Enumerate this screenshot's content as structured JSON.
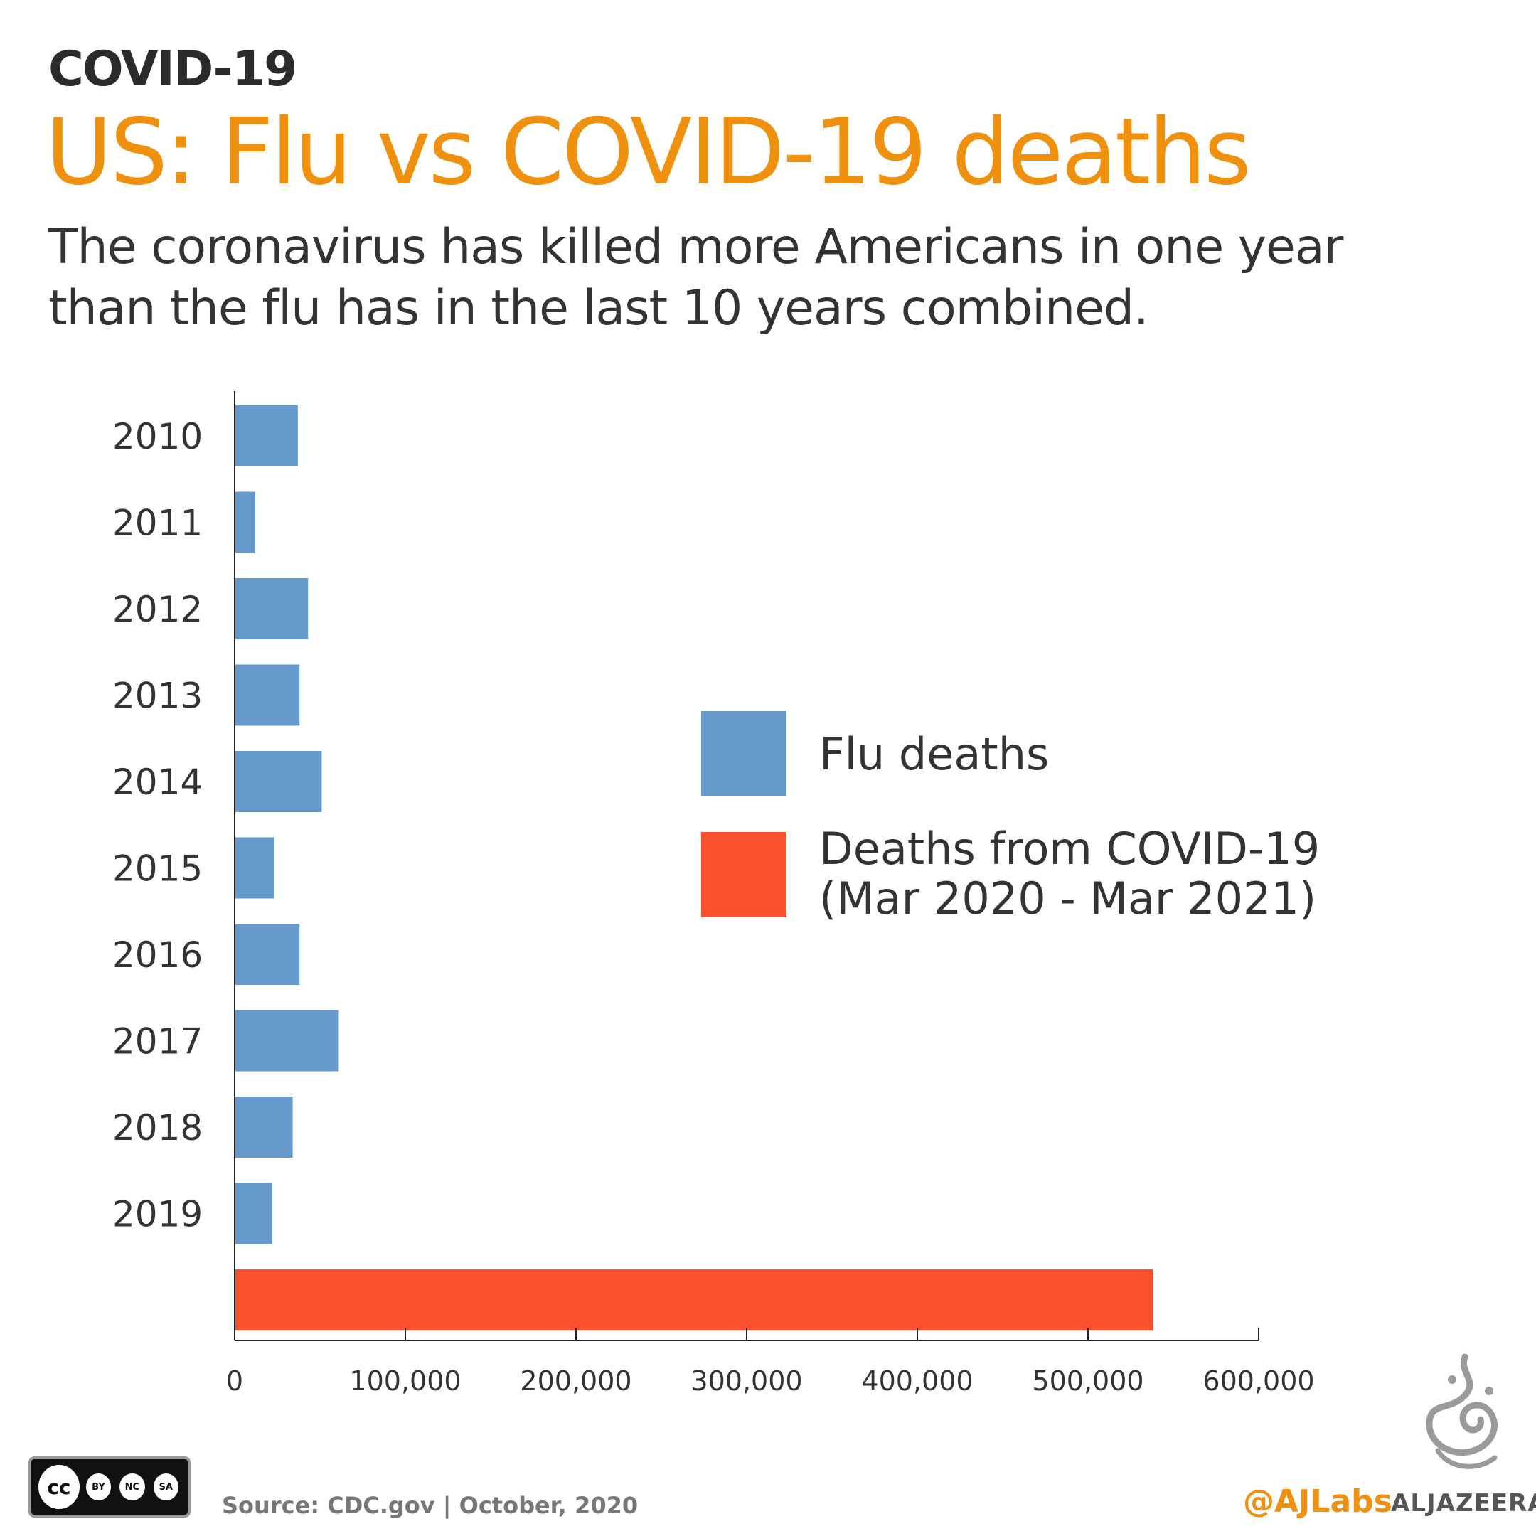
{
  "header": {
    "kicker": "COVID-19",
    "title": "US: Flu vs COVID-19 deaths",
    "subtitle": "The coronavirus has killed more Americans in one year than the flu has in the last 10 years combined."
  },
  "colors": {
    "flu": "#6699cc",
    "covid": "#f9512b",
    "accent": "#f0900f"
  },
  "chart_data": {
    "type": "bar",
    "orientation": "horizontal",
    "categories": [
      "2010",
      "2011",
      "2012",
      "2013",
      "2014",
      "2015",
      "2016",
      "2017",
      "2018",
      "2019",
      ""
    ],
    "series": [
      {
        "name": "Flu deaths",
        "values": [
          37000,
          12000,
          43000,
          38000,
          51000,
          23000,
          38000,
          61000,
          34000,
          22000,
          null
        ]
      },
      {
        "name": "Deaths from COVID-19 (Mar 2020 - Mar 2021)",
        "values": [
          null,
          null,
          null,
          null,
          null,
          null,
          null,
          null,
          null,
          null,
          538000
        ]
      }
    ],
    "xlim": [
      0,
      600000
    ],
    "xticks": [
      "0",
      "100,000",
      "200,000",
      "300,000",
      "400,000",
      "500,000",
      "600,000"
    ],
    "legend_position": "right",
    "legend": [
      {
        "label": "Flu deaths"
      },
      {
        "label_lines": [
          "Deaths from COVID-19",
          "(Mar 2020 - Mar 2021)"
        ]
      }
    ],
    "grid": false
  },
  "footer": {
    "license_text": "cc",
    "license_labels": [
      "BY",
      "NC",
      "SA"
    ],
    "source": "Source: CDC.gov  | October, 2020",
    "handle": "@AJLabs",
    "brand": "ALJAZEERA"
  }
}
